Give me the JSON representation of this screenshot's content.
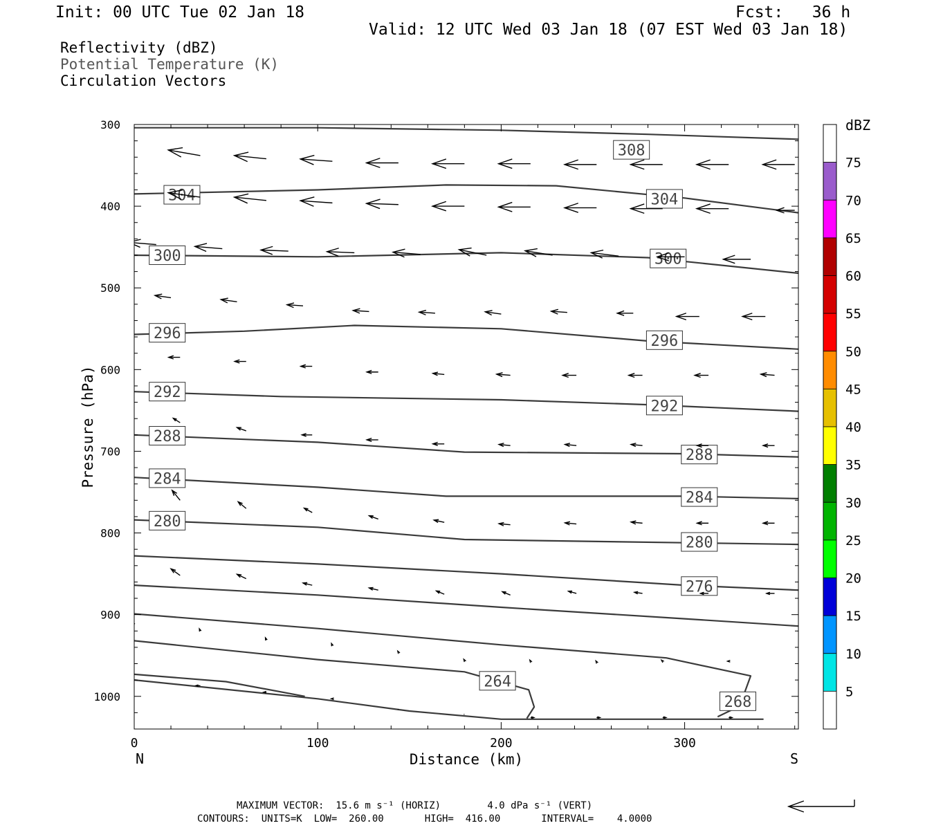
{
  "header": {
    "init": "Init: 00 UTC Tue 02 Jan 18",
    "fcst": "Fcst:   36 h",
    "valid": "Valid: 12 UTC Wed 03 Jan 18 (07 EST Wed 03 Jan 18)"
  },
  "legend_lines": {
    "reflectivity": "Reflectivity (dBZ)",
    "theta": "Potential Temperature (K)",
    "circulation": "Circulation Vectors"
  },
  "footer": {
    "max_vector": "MAXIMUM VECTOR:  15.6 m s⁻¹ (HORIZ)        4.0 dPa s⁻¹ (VERT)",
    "contours": "CONTOURS:  UNITS=K  LOW=  260.00       HIGH=  416.00       INTERVAL=    4.0000"
  },
  "colors": {
    "contour": "#3a3a3a",
    "vector": "#000000"
  },
  "chart_data": {
    "type": "cross-section",
    "xlabel": "Distance (km)",
    "ylabel": "Pressure (hPa)",
    "xlim": [
      0,
      362
    ],
    "ylim": [
      300,
      1040
    ],
    "y_reversed": true,
    "x_ticks": [
      "0",
      "100",
      "200",
      "300"
    ],
    "y_ticks": [
      "300",
      "400",
      "500",
      "600",
      "700",
      "800",
      "900",
      "1000"
    ],
    "x_end_labels": {
      "left": "N",
      "right": "S"
    },
    "colorbar": {
      "title": "dBZ",
      "labels": [
        "75",
        "70",
        "65",
        "60",
        "55",
        "50",
        "45",
        "40",
        "35",
        "30",
        "25",
        "20",
        "15",
        "10",
        "5"
      ],
      "bands": [
        {
          "from": 75,
          "to": 80,
          "color": "#ffffff"
        },
        {
          "from": 70,
          "to": 75,
          "color": "#9a5ccc"
        },
        {
          "from": 65,
          "to": 70,
          "color": "#ff00ff"
        },
        {
          "from": 60,
          "to": 65,
          "color": "#b00000"
        },
        {
          "from": 55,
          "to": 60,
          "color": "#d40000"
        },
        {
          "from": 50,
          "to": 55,
          "color": "#ff0000"
        },
        {
          "from": 45,
          "to": 50,
          "color": "#ff8c00"
        },
        {
          "from": 40,
          "to": 45,
          "color": "#e6c000"
        },
        {
          "from": 35,
          "to": 40,
          "color": "#ffff00"
        },
        {
          "from": 30,
          "to": 35,
          "color": "#007f00"
        },
        {
          "from": 25,
          "to": 30,
          "color": "#00b400"
        },
        {
          "from": 20,
          "to": 25,
          "color": "#00ff00"
        },
        {
          "from": 15,
          "to": 20,
          "color": "#0000d8"
        },
        {
          "from": 10,
          "to": 15,
          "color": "#0095ff"
        },
        {
          "from": 5,
          "to": 10,
          "color": "#00e5e5"
        },
        {
          "from": 0,
          "to": 5,
          "color": "#ffffff"
        }
      ]
    },
    "contour_unit": "K",
    "contours": [
      {
        "theta": 308,
        "label": "308",
        "points": [
          [
            0,
            304
          ],
          [
            100,
            304
          ],
          [
            200,
            307
          ],
          [
            280,
            312
          ],
          [
            362,
            318
          ]
        ],
        "labels_at": [
          [
            271,
            331
          ]
        ]
      },
      {
        "theta": 304,
        "label": "304",
        "points": [
          [
            0,
            385
          ],
          [
            100,
            380
          ],
          [
            170,
            374
          ],
          [
            230,
            375
          ],
          [
            300,
            390
          ],
          [
            362,
            408
          ]
        ],
        "labels_at": [
          [
            26,
            386
          ],
          [
            289,
            391
          ]
        ]
      },
      {
        "theta": 300,
        "label": "300",
        "points": [
          [
            0,
            460
          ],
          [
            100,
            462
          ],
          [
            200,
            457
          ],
          [
            280,
            463
          ],
          [
            362,
            482
          ]
        ],
        "labels_at": [
          [
            18,
            460
          ],
          [
            291,
            464
          ]
        ]
      },
      {
        "theta": 296,
        "label": "296",
        "points": [
          [
            0,
            557
          ],
          [
            60,
            553
          ],
          [
            120,
            546
          ],
          [
            200,
            550
          ],
          [
            280,
            565
          ],
          [
            362,
            575
          ]
        ],
        "labels_at": [
          [
            18,
            555
          ],
          [
            289,
            564
          ]
        ]
      },
      {
        "theta": 292,
        "label": "292",
        "points": [
          [
            0,
            627
          ],
          [
            80,
            633
          ],
          [
            200,
            637
          ],
          [
            280,
            643
          ],
          [
            362,
            651
          ]
        ],
        "labels_at": [
          [
            18,
            627
          ],
          [
            289,
            644
          ]
        ]
      },
      {
        "theta": 288,
        "label": "288",
        "points": [
          [
            0,
            680
          ],
          [
            100,
            689
          ],
          [
            180,
            701
          ],
          [
            300,
            703
          ],
          [
            362,
            707
          ]
        ],
        "labels_at": [
          [
            18,
            681
          ],
          [
            308,
            704
          ]
        ]
      },
      {
        "theta": 284,
        "label": "284",
        "points": [
          [
            0,
            732
          ],
          [
            100,
            744
          ],
          [
            170,
            755
          ],
          [
            300,
            755
          ],
          [
            362,
            758
          ]
        ],
        "labels_at": [
          [
            18,
            733
          ],
          [
            308,
            756
          ]
        ]
      },
      {
        "theta": 280,
        "label": "280",
        "points": [
          [
            0,
            784
          ],
          [
            100,
            793
          ],
          [
            180,
            808
          ],
          [
            300,
            812
          ],
          [
            362,
            814
          ]
        ],
        "labels_at": [
          [
            18,
            785
          ],
          [
            308,
            811
          ]
        ]
      },
      {
        "theta": 276,
        "label": "276",
        "points": [
          [
            0,
            828
          ],
          [
            100,
            838
          ],
          [
            200,
            850
          ],
          [
            300,
            864
          ],
          [
            362,
            870
          ]
        ],
        "labels_at": [
          [
            308,
            865
          ]
        ]
      },
      {
        "theta": 272,
        "label": "",
        "points": [
          [
            0,
            864
          ],
          [
            100,
            876
          ],
          [
            200,
            891
          ],
          [
            300,
            905
          ],
          [
            362,
            914
          ]
        ],
        "labels_at": []
      },
      {
        "theta": 268,
        "label": "268",
        "points": [
          [
            0,
            899
          ],
          [
            100,
            917
          ],
          [
            200,
            937
          ],
          [
            290,
            953
          ],
          [
            336,
            975
          ],
          [
            330,
            1012
          ],
          [
            318,
            1025
          ]
        ],
        "labels_at": [
          [
            329,
            1006
          ]
        ]
      },
      {
        "theta": 264,
        "label": "264",
        "points": [
          [
            0,
            932
          ],
          [
            100,
            955
          ],
          [
            180,
            970
          ],
          [
            215,
            992
          ],
          [
            218,
            1013
          ],
          [
            214,
            1027
          ]
        ],
        "labels_at": [
          [
            198,
            981
          ]
        ]
      },
      {
        "theta": 260,
        "label": "",
        "points": [
          [
            0,
            973
          ],
          [
            50,
            982
          ],
          [
            93,
            1000
          ]
        ],
        "labels_at": []
      },
      {
        "theta": 260,
        "label": "",
        "points": [
          [
            0,
            980
          ],
          [
            100,
            1003
          ],
          [
            150,
            1018
          ],
          [
            200,
            1028
          ],
          [
            300,
            1028
          ],
          [
            343,
            1028
          ]
        ],
        "labels_at": []
      }
    ],
    "vector_unit": "m s-1 (horiz), dPa s-1 (vert)",
    "vectors": [
      {
        "x": 0,
        "p": 333,
        "u": -13.0,
        "w": 0.4
      },
      {
        "x": 36,
        "p": 338,
        "u": -14.0,
        "w": 0.5
      },
      {
        "x": 72,
        "p": 342,
        "u": -14.0,
        "w": 0.3
      },
      {
        "x": 108,
        "p": 345,
        "u": -14.0,
        "w": 0.2
      },
      {
        "x": 144,
        "p": 347,
        "u": -14.0,
        "w": 0.0
      },
      {
        "x": 180,
        "p": 348,
        "u": -14.0,
        "w": 0.0
      },
      {
        "x": 216,
        "p": 348,
        "u": -14.0,
        "w": 0.0
      },
      {
        "x": 252,
        "p": 349,
        "u": -14.0,
        "w": 0.0
      },
      {
        "x": 288,
        "p": 349,
        "u": -14.0,
        "w": 0.0
      },
      {
        "x": 324,
        "p": 349,
        "u": -14.0,
        "w": 0.0
      },
      {
        "x": 360,
        "p": 349,
        "u": -14.0,
        "w": 0.0
      },
      {
        "x": 0,
        "p": 386,
        "u": -13.0,
        "w": 0.5
      },
      {
        "x": 36,
        "p": 389,
        "u": -14.0,
        "w": 0.4
      },
      {
        "x": 72,
        "p": 393,
        "u": -14.0,
        "w": 0.3
      },
      {
        "x": 108,
        "p": 396,
        "u": -14.0,
        "w": 0.2
      },
      {
        "x": 144,
        "p": 398,
        "u": -14.0,
        "w": 0.1
      },
      {
        "x": 180,
        "p": 400,
        "u": -14.0,
        "w": 0.0
      },
      {
        "x": 216,
        "p": 401,
        "u": -14.0,
        "w": 0.0
      },
      {
        "x": 252,
        "p": 402,
        "u": -14.0,
        "w": 0.0
      },
      {
        "x": 288,
        "p": 403,
        "u": -14.0,
        "w": 0.0
      },
      {
        "x": 324,
        "p": 403,
        "u": -14.0,
        "w": 0.0
      },
      {
        "x": 360,
        "p": 405,
        "u": -8.0,
        "w": 0.0
      },
      {
        "x": 12,
        "p": 447,
        "u": -12.0,
        "w": 0.2
      },
      {
        "x": 48,
        "p": 452,
        "u": -12.0,
        "w": 0.2
      },
      {
        "x": 84,
        "p": 455,
        "u": -12.0,
        "w": 0.1
      },
      {
        "x": 120,
        "p": 457,
        "u": -12.0,
        "w": 0.1
      },
      {
        "x": 156,
        "p": 459,
        "u": -12.0,
        "w": 0.2
      },
      {
        "x": 192,
        "p": 460,
        "u": -12.0,
        "w": 0.5
      },
      {
        "x": 228,
        "p": 460,
        "u": -12.0,
        "w": 0.4
      },
      {
        "x": 264,
        "p": 461,
        "u": -12.0,
        "w": 0.3
      },
      {
        "x": 300,
        "p": 462,
        "u": -12.0,
        "w": 0.0
      },
      {
        "x": 336,
        "p": 465,
        "u": -12.0,
        "w": 0.0
      },
      {
        "x": 20,
        "p": 512,
        "u": -7.0,
        "w": 0.2
      },
      {
        "x": 56,
        "p": 517,
        "u": -7.0,
        "w": 0.2
      },
      {
        "x": 92,
        "p": 522,
        "u": -7.0,
        "w": 0.1
      },
      {
        "x": 128,
        "p": 529,
        "u": -7.0,
        "w": 0.1
      },
      {
        "x": 164,
        "p": 531,
        "u": -7.0,
        "w": 0.1
      },
      {
        "x": 200,
        "p": 532,
        "u": -7.0,
        "w": 0.2
      },
      {
        "x": 236,
        "p": 530,
        "u": -7.0,
        "w": 0.1
      },
      {
        "x": 272,
        "p": 531,
        "u": -7.0,
        "w": 0.0
      },
      {
        "x": 308,
        "p": 535,
        "u": -10.0,
        "w": 0.0
      },
      {
        "x": 344,
        "p": 535,
        "u": -10.0,
        "w": 0.0
      },
      {
        "x": 25,
        "p": 585,
        "u": -5.0,
        "w": 0.0
      },
      {
        "x": 61,
        "p": 590,
        "u": -5.0,
        "w": 0.0
      },
      {
        "x": 97,
        "p": 596,
        "u": -5.0,
        "w": 0.0
      },
      {
        "x": 133,
        "p": 603,
        "u": -5.0,
        "w": 0.0
      },
      {
        "x": 169,
        "p": 606,
        "u": -5.0,
        "w": 0.1
      },
      {
        "x": 205,
        "p": 607,
        "u": -6.0,
        "w": 0.1
      },
      {
        "x": 241,
        "p": 607,
        "u": -6.0,
        "w": 0.0
      },
      {
        "x": 277,
        "p": 607,
        "u": -6.0,
        "w": 0.0
      },
      {
        "x": 313,
        "p": 607,
        "u": -6.0,
        "w": 0.0
      },
      {
        "x": 349,
        "p": 607,
        "u": -6.0,
        "w": 0.1
      },
      {
        "x": 25,
        "p": 665,
        "u": -3.0,
        "w": 0.4
      },
      {
        "x": 61,
        "p": 675,
        "u": -4.0,
        "w": 0.3
      },
      {
        "x": 97,
        "p": 680,
        "u": -4.5,
        "w": 0.0
      },
      {
        "x": 133,
        "p": 686,
        "u": -5.0,
        "w": 0.0
      },
      {
        "x": 169,
        "p": 691,
        "u": -5.0,
        "w": 0.0
      },
      {
        "x": 205,
        "p": 693,
        "u": -5.0,
        "w": 0.1
      },
      {
        "x": 241,
        "p": 693,
        "u": -5.0,
        "w": 0.1
      },
      {
        "x": 277,
        "p": 693,
        "u": -5.0,
        "w": 0.1
      },
      {
        "x": 313,
        "p": 693,
        "u": -5.0,
        "w": 0.0
      },
      {
        "x": 349,
        "p": 693,
        "u": -5.0,
        "w": 0.0
      },
      {
        "x": 25,
        "p": 760,
        "u": -3.5,
        "w": 0.9
      },
      {
        "x": 61,
        "p": 770,
        "u": -3.5,
        "w": 0.6
      },
      {
        "x": 97,
        "p": 775,
        "u": -3.5,
        "w": 0.4
      },
      {
        "x": 133,
        "p": 783,
        "u": -4.0,
        "w": 0.3
      },
      {
        "x": 169,
        "p": 787,
        "u": -4.5,
        "w": 0.2
      },
      {
        "x": 205,
        "p": 790,
        "u": -5.0,
        "w": 0.1
      },
      {
        "x": 241,
        "p": 789,
        "u": -5.0,
        "w": 0.1
      },
      {
        "x": 277,
        "p": 788,
        "u": -5.0,
        "w": 0.1
      },
      {
        "x": 313,
        "p": 788,
        "u": -5.0,
        "w": 0.0
      },
      {
        "x": 349,
        "p": 788,
        "u": -5.0,
        "w": 0.0
      },
      {
        "x": 25,
        "p": 852,
        "u": -4.0,
        "w": 0.6
      },
      {
        "x": 61,
        "p": 856,
        "u": -4.0,
        "w": 0.4
      },
      {
        "x": 97,
        "p": 864,
        "u": -4.0,
        "w": 0.2
      },
      {
        "x": 133,
        "p": 870,
        "u": -4.0,
        "w": 0.2
      },
      {
        "x": 169,
        "p": 875,
        "u": -3.5,
        "w": 0.3
      },
      {
        "x": 205,
        "p": 876,
        "u": -3.5,
        "w": 0.3
      },
      {
        "x": 241,
        "p": 874,
        "u": -3.5,
        "w": 0.2
      },
      {
        "x": 277,
        "p": 874,
        "u": -3.5,
        "w": 0.1
      },
      {
        "x": 313,
        "p": 874,
        "u": -3.5,
        "w": 0.0
      },
      {
        "x": 349,
        "p": 874,
        "u": -3.5,
        "w": 0.0
      },
      {
        "x": 0,
        "p": 913,
        "u": -0.5,
        "w": 0.3
      },
      {
        "x": 36,
        "p": 920,
        "u": -0.4,
        "w": 0.2
      },
      {
        "x": 72,
        "p": 931,
        "u": -0.4,
        "w": 0.2
      },
      {
        "x": 108,
        "p": 938,
        "u": -0.4,
        "w": 0.2
      },
      {
        "x": 144,
        "p": 946,
        "u": -0.3,
        "w": 0.1
      },
      {
        "x": 180,
        "p": 956,
        "u": -0.3,
        "w": 0.1
      },
      {
        "x": 216,
        "p": 957,
        "u": -0.3,
        "w": 0.1
      },
      {
        "x": 252,
        "p": 958,
        "u": -0.3,
        "w": 0.1
      },
      {
        "x": 288,
        "p": 957,
        "u": -0.5,
        "w": 0.1
      },
      {
        "x": 324,
        "p": 957,
        "u": -0.5,
        "w": 0.0
      },
      {
        "x": 36,
        "p": 987,
        "u": -2.0,
        "w": 0.0
      },
      {
        "x": 72,
        "p": 995,
        "u": -1.2,
        "w": 0.0
      },
      {
        "x": 108,
        "p": 1003,
        "u": -0.5,
        "w": 0.0
      },
      {
        "x": 144,
        "p": 1016,
        "u": -0.3,
        "w": 0.0
      },
      {
        "x": 180,
        "p": 1022,
        "u": -0.3,
        "w": 0.0
      },
      {
        "x": 216,
        "p": 1026,
        "u": 1.5,
        "w": 0.0
      },
      {
        "x": 252,
        "p": 1026,
        "u": 1.5,
        "w": 0.0
      },
      {
        "x": 288,
        "p": 1026,
        "u": 1.5,
        "w": 0.0
      },
      {
        "x": 324,
        "p": 1026,
        "u": 1.5,
        "w": 0.0
      }
    ],
    "reference_vector": {
      "u": -15.6,
      "w": 4.0
    }
  }
}
